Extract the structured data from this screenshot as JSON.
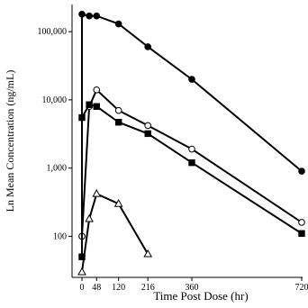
{
  "chart_data": {
    "type": "line",
    "xlabel": "Time Post Dose (hr)",
    "ylabel": "Ln Mean Concentration (ng/mL)",
    "x_scale": "linear",
    "y_scale": "log",
    "xlim": [
      0,
      720
    ],
    "ylim": [
      25,
      250000
    ],
    "x_ticks": [
      0,
      48,
      120,
      216,
      360,
      720
    ],
    "x_tick_labels": [
      "0",
      "48",
      "120",
      "216",
      "360",
      "720"
    ],
    "y_ticks": [
      100,
      1000,
      10000,
      100000
    ],
    "y_tick_labels": [
      "100",
      "1,000",
      "10,000",
      "100,000"
    ],
    "grid": false,
    "series": [
      {
        "marker": "filled-circle",
        "color": "#000000",
        "x": [
          0,
          0,
          24,
          48,
          120,
          216,
          360,
          720
        ],
        "y": [
          100,
          180000,
          170000,
          170000,
          130000,
          60000,
          20000,
          900
        ]
      },
      {
        "marker": "open-circle",
        "color": "#000000",
        "x": [
          0,
          24,
          48,
          120,
          216,
          360,
          720
        ],
        "y": [
          100,
          8000,
          14000,
          7000,
          4200,
          1900,
          160
        ]
      },
      {
        "marker": "filled-square",
        "color": "#000000",
        "x": [
          0,
          0,
          24,
          48,
          120,
          216,
          360,
          720
        ],
        "y": [
          50,
          5500,
          8500,
          8000,
          4700,
          3200,
          1200,
          110
        ]
      },
      {
        "marker": "open-triangle",
        "color": "#000000",
        "x": [
          0,
          24,
          48,
          120,
          216
        ],
        "y": [
          30,
          180,
          420,
          300,
          55
        ]
      }
    ]
  }
}
